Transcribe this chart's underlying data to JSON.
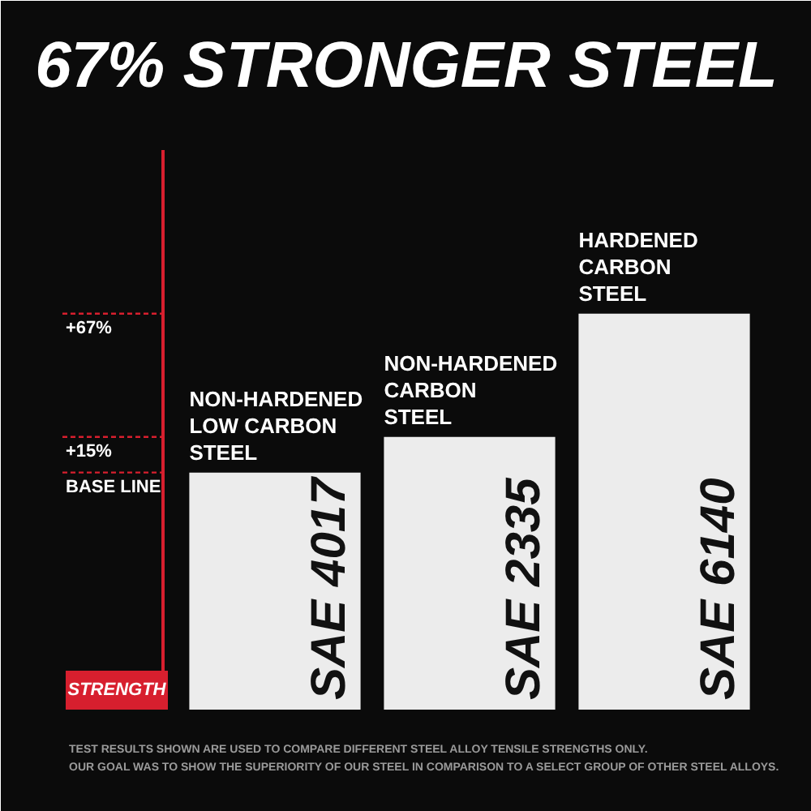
{
  "chart_data": {
    "type": "bar",
    "title": "67% STRONGER STEEL",
    "ylabel": "STRENGTH",
    "categories": [
      "NON-HARDENED\nLOW CARBON\nSTEEL",
      "NON-HARDENED\nCARBON\nSTEEL",
      "HARDENED\nCARBON\nSTEEL"
    ],
    "values": [
      100,
      115,
      167
    ],
    "base": [
      -100,
      -100,
      -100
    ],
    "color": "#ececec",
    "ylim": [
      -100,
      136
    ],
    "yticks": [
      {
        "value": 0,
        "label": "BASE LINE"
      },
      {
        "value": 15,
        "label": "+15%"
      },
      {
        "value": 67,
        "label": "+67%"
      }
    ],
    "grid": false,
    "annotations": [
      {
        "text": "SAE 4017",
        "x": "NON-HARDENED\nLOW CARBON\nSTEEL",
        "y": -100
      },
      {
        "text": "SAE 2335",
        "x": "NON-HARDENED\nCARBON\nSTEEL",
        "y": -100
      },
      {
        "text": "SAE 6140",
        "x": "HARDENED\nCARBON\nSTEEL",
        "y": -100
      },
      "TEST RESULTS SHOWN ARE USED TO COMPARE DIFFERENT STEEL ALLOY TENSILE STRENGTHS ONLY.",
      "OUR GOAL WAS TO SHOW THE SUPERIORITY OF OUR STEEL IN COMPARISON TO A SELECT GROUP OF OTHER STEEL ALLOYS."
    ]
  }
}
